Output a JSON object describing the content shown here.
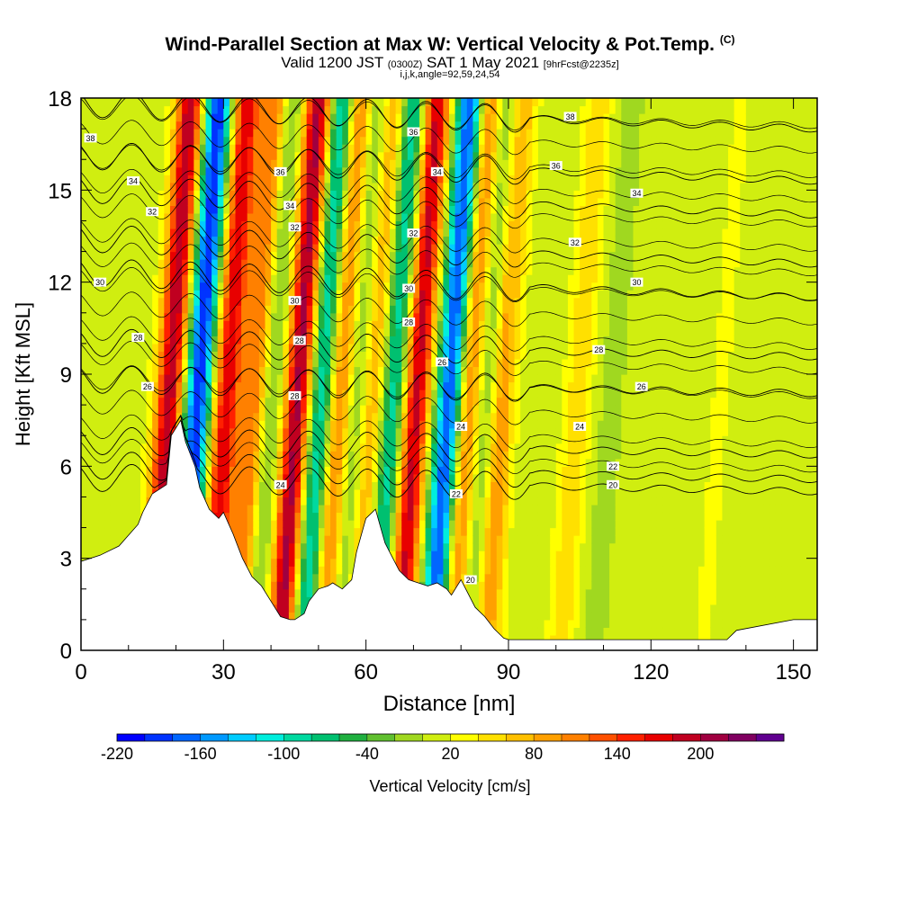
{
  "title": {
    "main": "Wind-Parallel Section at Max W: Vertical Velocity & Pot.Temp.",
    "copyright": "(C)",
    "valid_prefix": "Valid 1200 JST",
    "valid_utc": "(0300Z)",
    "valid_date": "SAT 1 May 2021",
    "forecast": "[9hrFcst@2235z]",
    "params": "i,j,k,angle=92,59,24,54"
  },
  "chart_data": {
    "type": "heatmap",
    "xlabel": "Distance [nm]",
    "ylabel": "Height [Kft MSL]",
    "xlim": [
      0,
      155
    ],
    "ylim": [
      0,
      18
    ],
    "x_ticks": [
      0,
      30,
      60,
      90,
      120,
      150
    ],
    "y_ticks": [
      0,
      3,
      6,
      9,
      12,
      15,
      18
    ],
    "colorbar": {
      "label": "Vertical Velocity [cm/s]",
      "tick_labels": [
        "-220",
        "-160",
        "-100",
        "-40",
        "20",
        "80",
        "140",
        "200"
      ],
      "tick_values": [
        -220,
        -160,
        -100,
        -40,
        20,
        80,
        140,
        200
      ],
      "levels": [
        -220,
        -200,
        -180,
        -160,
        -140,
        -120,
        -100,
        -80,
        -60,
        -40,
        -20,
        0,
        20,
        40,
        60,
        80,
        100,
        120,
        140,
        160,
        180,
        200,
        220,
        240
      ],
      "colors": [
        "#0000ff",
        "#0033ff",
        "#0066ff",
        "#0099ff",
        "#00ccff",
        "#00eedd",
        "#00d9a0",
        "#00c070",
        "#20b040",
        "#60c030",
        "#a0d820",
        "#d0ee10",
        "#ffff00",
        "#ffe000",
        "#ffc000",
        "#ffa000",
        "#ff8000",
        "#ff5000",
        "#ff2000",
        "#e80000",
        "#c00020",
        "#a00040",
        "#800060",
        "#600090"
      ]
    },
    "velocity_bands": [
      {
        "x": 19,
        "w": 190
      },
      {
        "x": 25,
        "w": -210
      },
      {
        "x": 31,
        "w": 170
      },
      {
        "x": 37,
        "w": 120
      },
      {
        "x": 40,
        "w": -60
      },
      {
        "x": 46,
        "w": 200
      },
      {
        "x": 51,
        "w": -120
      },
      {
        "x": 55,
        "w": 120
      },
      {
        "x": 58,
        "w": -60
      },
      {
        "x": 62,
        "w": 80
      },
      {
        "x": 66,
        "w": -110
      },
      {
        "x": 71,
        "w": 180
      },
      {
        "x": 78,
        "w": -200
      },
      {
        "x": 82,
        "w": 110
      },
      {
        "x": 86,
        "w": -60
      },
      {
        "x": 89,
        "w": 100
      },
      {
        "x": 105,
        "w": 60
      },
      {
        "x": 112,
        "w": -20
      },
      {
        "x": 135,
        "w": 20
      }
    ],
    "terrain": {
      "x": [
        0,
        4,
        8,
        12,
        13,
        15,
        18,
        19,
        21,
        22,
        24,
        25,
        27,
        29,
        30,
        32,
        34,
        36,
        38,
        40,
        42,
        44,
        45,
        47,
        48,
        50,
        52,
        53,
        55,
        57,
        58,
        60,
        62,
        64,
        65,
        67,
        69,
        71,
        73,
        75,
        77,
        78,
        80,
        81,
        83,
        85,
        87,
        89,
        90,
        95,
        100,
        110,
        120,
        130,
        136,
        138,
        150,
        155
      ],
      "y": [
        2.9,
        3.1,
        3.4,
        4.1,
        4.5,
        5.1,
        5.4,
        7.0,
        7.5,
        6.8,
        6.0,
        5.3,
        4.6,
        4.3,
        4.5,
        3.8,
        3.0,
        2.4,
        2.1,
        1.6,
        1.1,
        1.0,
        1.0,
        1.2,
        1.6,
        2.0,
        2.1,
        2.2,
        2.0,
        2.3,
        3.2,
        4.3,
        4.6,
        3.5,
        3.2,
        2.6,
        2.3,
        2.2,
        2.1,
        2.2,
        2.0,
        1.8,
        2.3,
        2.0,
        1.4,
        1.1,
        0.7,
        0.4,
        0.35,
        0.35,
        0.35,
        0.35,
        0.35,
        0.35,
        0.35,
        0.65,
        1.0,
        1.0
      ]
    },
    "theta_contours": [
      {
        "label": "20",
        "base": 5.4,
        "lx": 112,
        "ly": 5.4
      },
      {
        "label": "22",
        "base": 5.8,
        "lx": 112,
        "ly": 6.0
      },
      {
        "label": "24",
        "base": 6.6,
        "lx": 105,
        "ly": 7.3
      },
      {
        "label": "26",
        "base": 8.6,
        "lx": 118,
        "ly": 8.6
      },
      {
        "label": "28",
        "base": 9.8,
        "lx": 109,
        "ly": 9.8
      },
      {
        "label": "30",
        "base": 11.9,
        "lx": 117,
        "ly": 12.0
      },
      {
        "label": "32",
        "base": 13.0,
        "lx": 104,
        "ly": 13.3
      },
      {
        "label": "34",
        "base": 14.6,
        "lx": 117,
        "ly": 14.9
      },
      {
        "label": "36",
        "base": 15.7,
        "lx": 100,
        "ly": 15.8
      },
      {
        "label": "38",
        "base": 17.4,
        "lx": 103,
        "ly": 17.4
      }
    ],
    "contour_labels": [
      {
        "text": "38",
        "x": 2,
        "y": 16.7
      },
      {
        "text": "34",
        "x": 11,
        "y": 15.3
      },
      {
        "text": "32",
        "x": 15,
        "y": 14.3
      },
      {
        "text": "30",
        "x": 4,
        "y": 12.0
      },
      {
        "text": "28",
        "x": 12,
        "y": 10.2
      },
      {
        "text": "26",
        "x": 14,
        "y": 8.6
      },
      {
        "text": "24",
        "x": 42,
        "y": 5.4
      },
      {
        "text": "36",
        "x": 42,
        "y": 15.6
      },
      {
        "text": "34",
        "x": 44,
        "y": 14.5
      },
      {
        "text": "32",
        "x": 45,
        "y": 13.8
      },
      {
        "text": "30",
        "x": 45,
        "y": 11.4
      },
      {
        "text": "28",
        "x": 46,
        "y": 10.1
      },
      {
        "text": "28",
        "x": 45,
        "y": 8.3
      },
      {
        "text": "36",
        "x": 70,
        "y": 16.9
      },
      {
        "text": "34",
        "x": 75,
        "y": 15.6
      },
      {
        "text": "32",
        "x": 70,
        "y": 13.6
      },
      {
        "text": "30",
        "x": 69,
        "y": 11.8
      },
      {
        "text": "28",
        "x": 69,
        "y": 10.7
      },
      {
        "text": "26",
        "x": 76,
        "y": 9.4
      },
      {
        "text": "24",
        "x": 80,
        "y": 7.3
      },
      {
        "text": "22",
        "x": 79,
        "y": 5.1
      },
      {
        "text": "20",
        "x": 82,
        "y": 2.3
      }
    ]
  }
}
